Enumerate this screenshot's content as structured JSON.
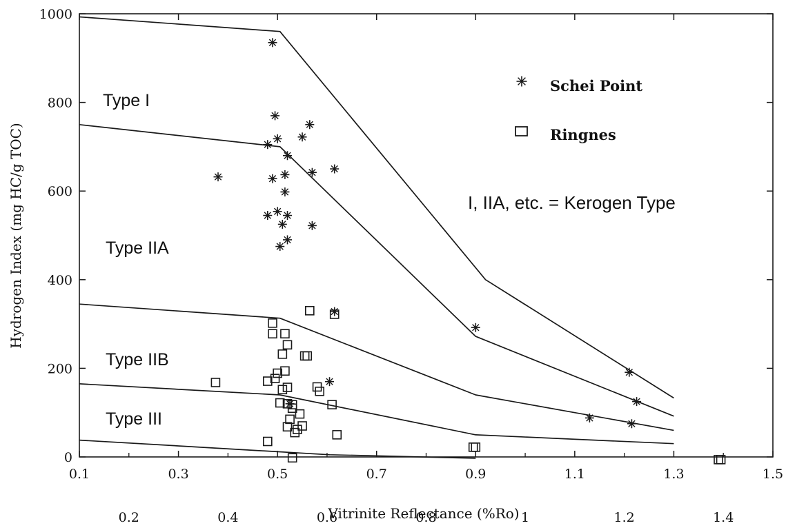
{
  "chart_data": {
    "type": "scatter",
    "xlabel": "Vitrinite Reflectance (%Ro)",
    "ylabel": "Hydrogen Index (mg HC/g TOC)",
    "xlim": [
      0.1,
      1.5
    ],
    "ylim": [
      0,
      1000
    ],
    "x_ticks_major": [
      "0.1",
      "0.3",
      "0.5",
      "0.7",
      "0.9",
      "1.1",
      "1.3",
      "1.5"
    ],
    "x_ticks_minor": [
      "0.2",
      "0.4",
      "0.6",
      "0.8",
      "1",
      "1.2",
      "1.4"
    ],
    "y_ticks": [
      "0",
      "200",
      "400",
      "600",
      "800",
      "1000"
    ],
    "grid": false,
    "legend_position": "top-right",
    "annotation": "I, IIA, etc. = Kerogen Type",
    "region_labels": [
      "Type I",
      "Type IIA",
      "Type IIB",
      "Type III"
    ],
    "boundary_lines": [
      {
        "points": [
          [
            0.1,
            993
          ],
          [
            0.505,
            960
          ],
          [
            0.92,
            400
          ],
          [
            1.3,
            133
          ]
        ]
      },
      {
        "points": [
          [
            0.1,
            750
          ],
          [
            0.505,
            700
          ],
          [
            0.9,
            272
          ],
          [
            1.3,
            92
          ]
        ]
      },
      {
        "points": [
          [
            0.1,
            345
          ],
          [
            0.505,
            313
          ],
          [
            0.9,
            140
          ],
          [
            1.3,
            60
          ]
        ]
      },
      {
        "points": [
          [
            0.1,
            165
          ],
          [
            0.505,
            140
          ],
          [
            0.9,
            50
          ],
          [
            1.3,
            30
          ]
        ]
      },
      {
        "points": [
          [
            0.1,
            38
          ],
          [
            0.605,
            5
          ],
          [
            0.9,
            -3
          ]
        ]
      }
    ],
    "series": [
      {
        "name": "Schei Point",
        "marker": "asterisk",
        "points": [
          [
            0.49,
            935
          ],
          [
            0.495,
            770
          ],
          [
            0.48,
            705
          ],
          [
            0.5,
            718
          ],
          [
            0.55,
            722
          ],
          [
            0.565,
            750
          ],
          [
            0.52,
            680
          ],
          [
            0.38,
            632
          ],
          [
            0.49,
            628
          ],
          [
            0.515,
            637
          ],
          [
            0.57,
            642
          ],
          [
            0.615,
            650
          ],
          [
            0.515,
            598
          ],
          [
            0.5,
            554
          ],
          [
            0.48,
            545
          ],
          [
            0.51,
            525
          ],
          [
            0.52,
            545
          ],
          [
            0.57,
            522
          ],
          [
            0.505,
            475
          ],
          [
            0.52,
            490
          ],
          [
            0.615,
            328
          ],
          [
            0.605,
            170
          ],
          [
            0.9,
            292
          ],
          [
            1.21,
            191
          ],
          [
            1.215,
            75
          ],
          [
            1.13,
            88
          ],
          [
            1.225,
            125
          ],
          [
            0.525,
            120
          ]
        ]
      },
      {
        "name": "Ringnes",
        "marker": "square",
        "points": [
          [
            0.49,
            302
          ],
          [
            0.49,
            278
          ],
          [
            0.515,
            278
          ],
          [
            0.52,
            253
          ],
          [
            0.51,
            232
          ],
          [
            0.515,
            194
          ],
          [
            0.5,
            189
          ],
          [
            0.495,
            177
          ],
          [
            0.48,
            171
          ],
          [
            0.375,
            168
          ],
          [
            0.52,
            157
          ],
          [
            0.51,
            152
          ],
          [
            0.505,
            122
          ],
          [
            0.52,
            120
          ],
          [
            0.53,
            118
          ],
          [
            0.53,
            110
          ],
          [
            0.525,
            85
          ],
          [
            0.52,
            68
          ],
          [
            0.535,
            55
          ],
          [
            0.54,
            62
          ],
          [
            0.545,
            97
          ],
          [
            0.55,
            70
          ],
          [
            0.555,
            228
          ],
          [
            0.56,
            228
          ],
          [
            0.565,
            330
          ],
          [
            0.615,
            322
          ],
          [
            0.58,
            158
          ],
          [
            0.585,
            148
          ],
          [
            0.61,
            118
          ],
          [
            0.62,
            50
          ],
          [
            0.48,
            35
          ],
          [
            0.53,
            -2
          ],
          [
            0.895,
            22
          ],
          [
            0.9,
            22
          ],
          [
            1.39,
            -6
          ],
          [
            1.395,
            -6
          ]
        ]
      }
    ]
  },
  "colors": {
    "ink": "#1a1a1a",
    "background": "#ffffff"
  }
}
